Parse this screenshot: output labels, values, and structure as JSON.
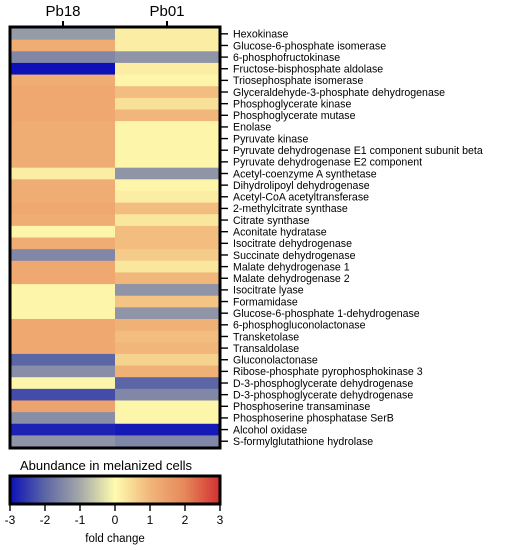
{
  "chart_data": {
    "type": "heatmap",
    "columns": [
      "Pb18",
      "Pb01"
    ],
    "rows": [
      "Hexokinase",
      "Glucose-6-phosphate isomerase",
      "6-phosphofructokinase",
      "Fructose-bisphosphate aldolase",
      "Triosephosphate isomerase",
      "Glyceraldehyde-3-phosphate dehydrogenase",
      "Phosphoglycerate kinase",
      "Phosphoglycerate mutase",
      "Enolase",
      "Pyruvate kinase",
      "Pyruvate dehydrogenase E1 component subunit beta",
      "Pyruvate dehydrogenase E2 component",
      "Acetyl-coenzyme A synthetase",
      "Dihydrolipoyl dehydrogenase",
      "Acetyl-CoA acetyltransferase",
      "2-methylcitrate synthase",
      "Citrate synthase",
      "Aconitate hydratase",
      "Isocitrate dehydrogenase",
      "Succinate dehydrogenase",
      "Malate dehydrogenase 1",
      "Malate dehydrogenase 2",
      "Isocitrate lyase",
      "Formamidase",
      "Glucose-6-phosphate 1-dehydrogenase",
      "6-phosphogluconolactonase",
      "Transketolase",
      "Transaldolase",
      "Gluconolactonase",
      "Ribose-phosphate pyrophosphokinase 3",
      "D-3-phosphoglycerate dehydrogenase",
      "D-3-phosphoglycerate dehydrogenase",
      "Phosphoserine transaminase",
      "Phosphoserine phosphatase SerB",
      "Alcohol oxidase",
      "S-formylglutathione hydrolase"
    ],
    "values": [
      [
        -1.2,
        0.2
      ],
      [
        1.2,
        0.2
      ],
      [
        -1.5,
        -1.3
      ],
      [
        -3.0,
        0.2
      ],
      [
        1.2,
        0.1
      ],
      [
        1.3,
        0.9
      ],
      [
        1.3,
        0.4
      ],
      [
        1.3,
        1.0
      ],
      [
        1.2,
        0.1
      ],
      [
        1.2,
        0.1
      ],
      [
        1.2,
        0.1
      ],
      [
        1.2,
        0.1
      ],
      [
        0.2,
        -1.3
      ],
      [
        1.2,
        0.1
      ],
      [
        1.2,
        0.2
      ],
      [
        1.3,
        0.9
      ],
      [
        1.2,
        0.3
      ],
      [
        0.1,
        0.9
      ],
      [
        1.2,
        0.9
      ],
      [
        -1.5,
        0.7
      ],
      [
        1.3,
        0.3
      ],
      [
        1.3,
        1.0
      ],
      [
        0.1,
        -1.3
      ],
      [
        0.1,
        0.8
      ],
      [
        0.1,
        -1.3
      ],
      [
        1.3,
        1.1
      ],
      [
        1.3,
        0.9
      ],
      [
        1.3,
        1.0
      ],
      [
        -2.0,
        0.6
      ],
      [
        -1.4,
        1.1
      ],
      [
        0.1,
        -2.0
      ],
      [
        -2.3,
        -1.5
      ],
      [
        1.4,
        0.1
      ],
      [
        -1.4,
        0.1
      ],
      [
        -2.8,
        -2.9
      ],
      [
        -1.3,
        -1.5
      ]
    ],
    "legend_title": "Abundance in melanized cells",
    "colorbar": {
      "min": -3,
      "max": 3,
      "ticks": [
        -3,
        -2,
        -1,
        0,
        1,
        2,
        3
      ],
      "label": "fold change",
      "stops": [
        {
          "v": -3,
          "color": "#0d10b8"
        },
        {
          "v": -2,
          "color": "#5c66a6"
        },
        {
          "v": -1,
          "color": "#a5a8a8"
        },
        {
          "v": 0,
          "color": "#fefcae"
        },
        {
          "v": 1,
          "color": "#f1b67a"
        },
        {
          "v": 2,
          "color": "#e6875a"
        },
        {
          "v": 3,
          "color": "#d22f2f"
        }
      ]
    }
  }
}
